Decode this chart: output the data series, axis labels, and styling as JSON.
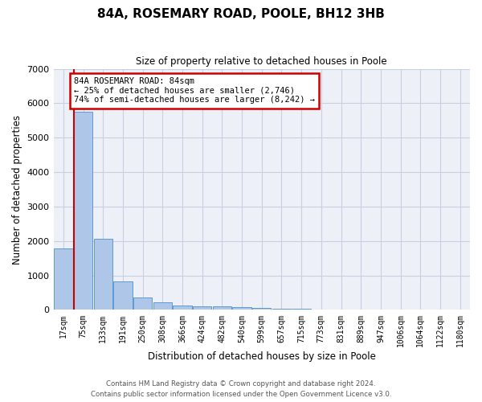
{
  "title": "84A, ROSEMARY ROAD, POOLE, BH12 3HB",
  "subtitle": "Size of property relative to detached houses in Poole",
  "xlabel": "Distribution of detached houses by size in Poole",
  "ylabel": "Number of detached properties",
  "categories": [
    "17sqm",
    "75sqm",
    "133sqm",
    "191sqm",
    "250sqm",
    "308sqm",
    "366sqm",
    "424sqm",
    "482sqm",
    "540sqm",
    "599sqm",
    "657sqm",
    "715sqm",
    "773sqm",
    "831sqm",
    "889sqm",
    "947sqm",
    "1006sqm",
    "1064sqm",
    "1122sqm",
    "1180sqm"
  ],
  "values": [
    1780,
    5750,
    2060,
    820,
    360,
    210,
    130,
    100,
    95,
    75,
    55,
    40,
    30,
    0,
    0,
    0,
    0,
    0,
    0,
    0,
    0
  ],
  "bar_color": "#aec6e8",
  "bar_edge_color": "#5b9bd5",
  "vline_color": "#cc0000",
  "annotation_text": "84A ROSEMARY ROAD: 84sqm\n← 25% of detached houses are smaller (2,746)\n74% of semi-detached houses are larger (8,242) →",
  "annotation_box_color": "#cc0000",
  "ylim": [
    0,
    7000
  ],
  "yticks": [
    0,
    1000,
    2000,
    3000,
    4000,
    5000,
    6000,
    7000
  ],
  "grid_color": "#c8d0e0",
  "bg_color": "#eef0f8",
  "footer_line1": "Contains HM Land Registry data © Crown copyright and database right 2024.",
  "footer_line2": "Contains public sector information licensed under the Open Government Licence v3.0."
}
